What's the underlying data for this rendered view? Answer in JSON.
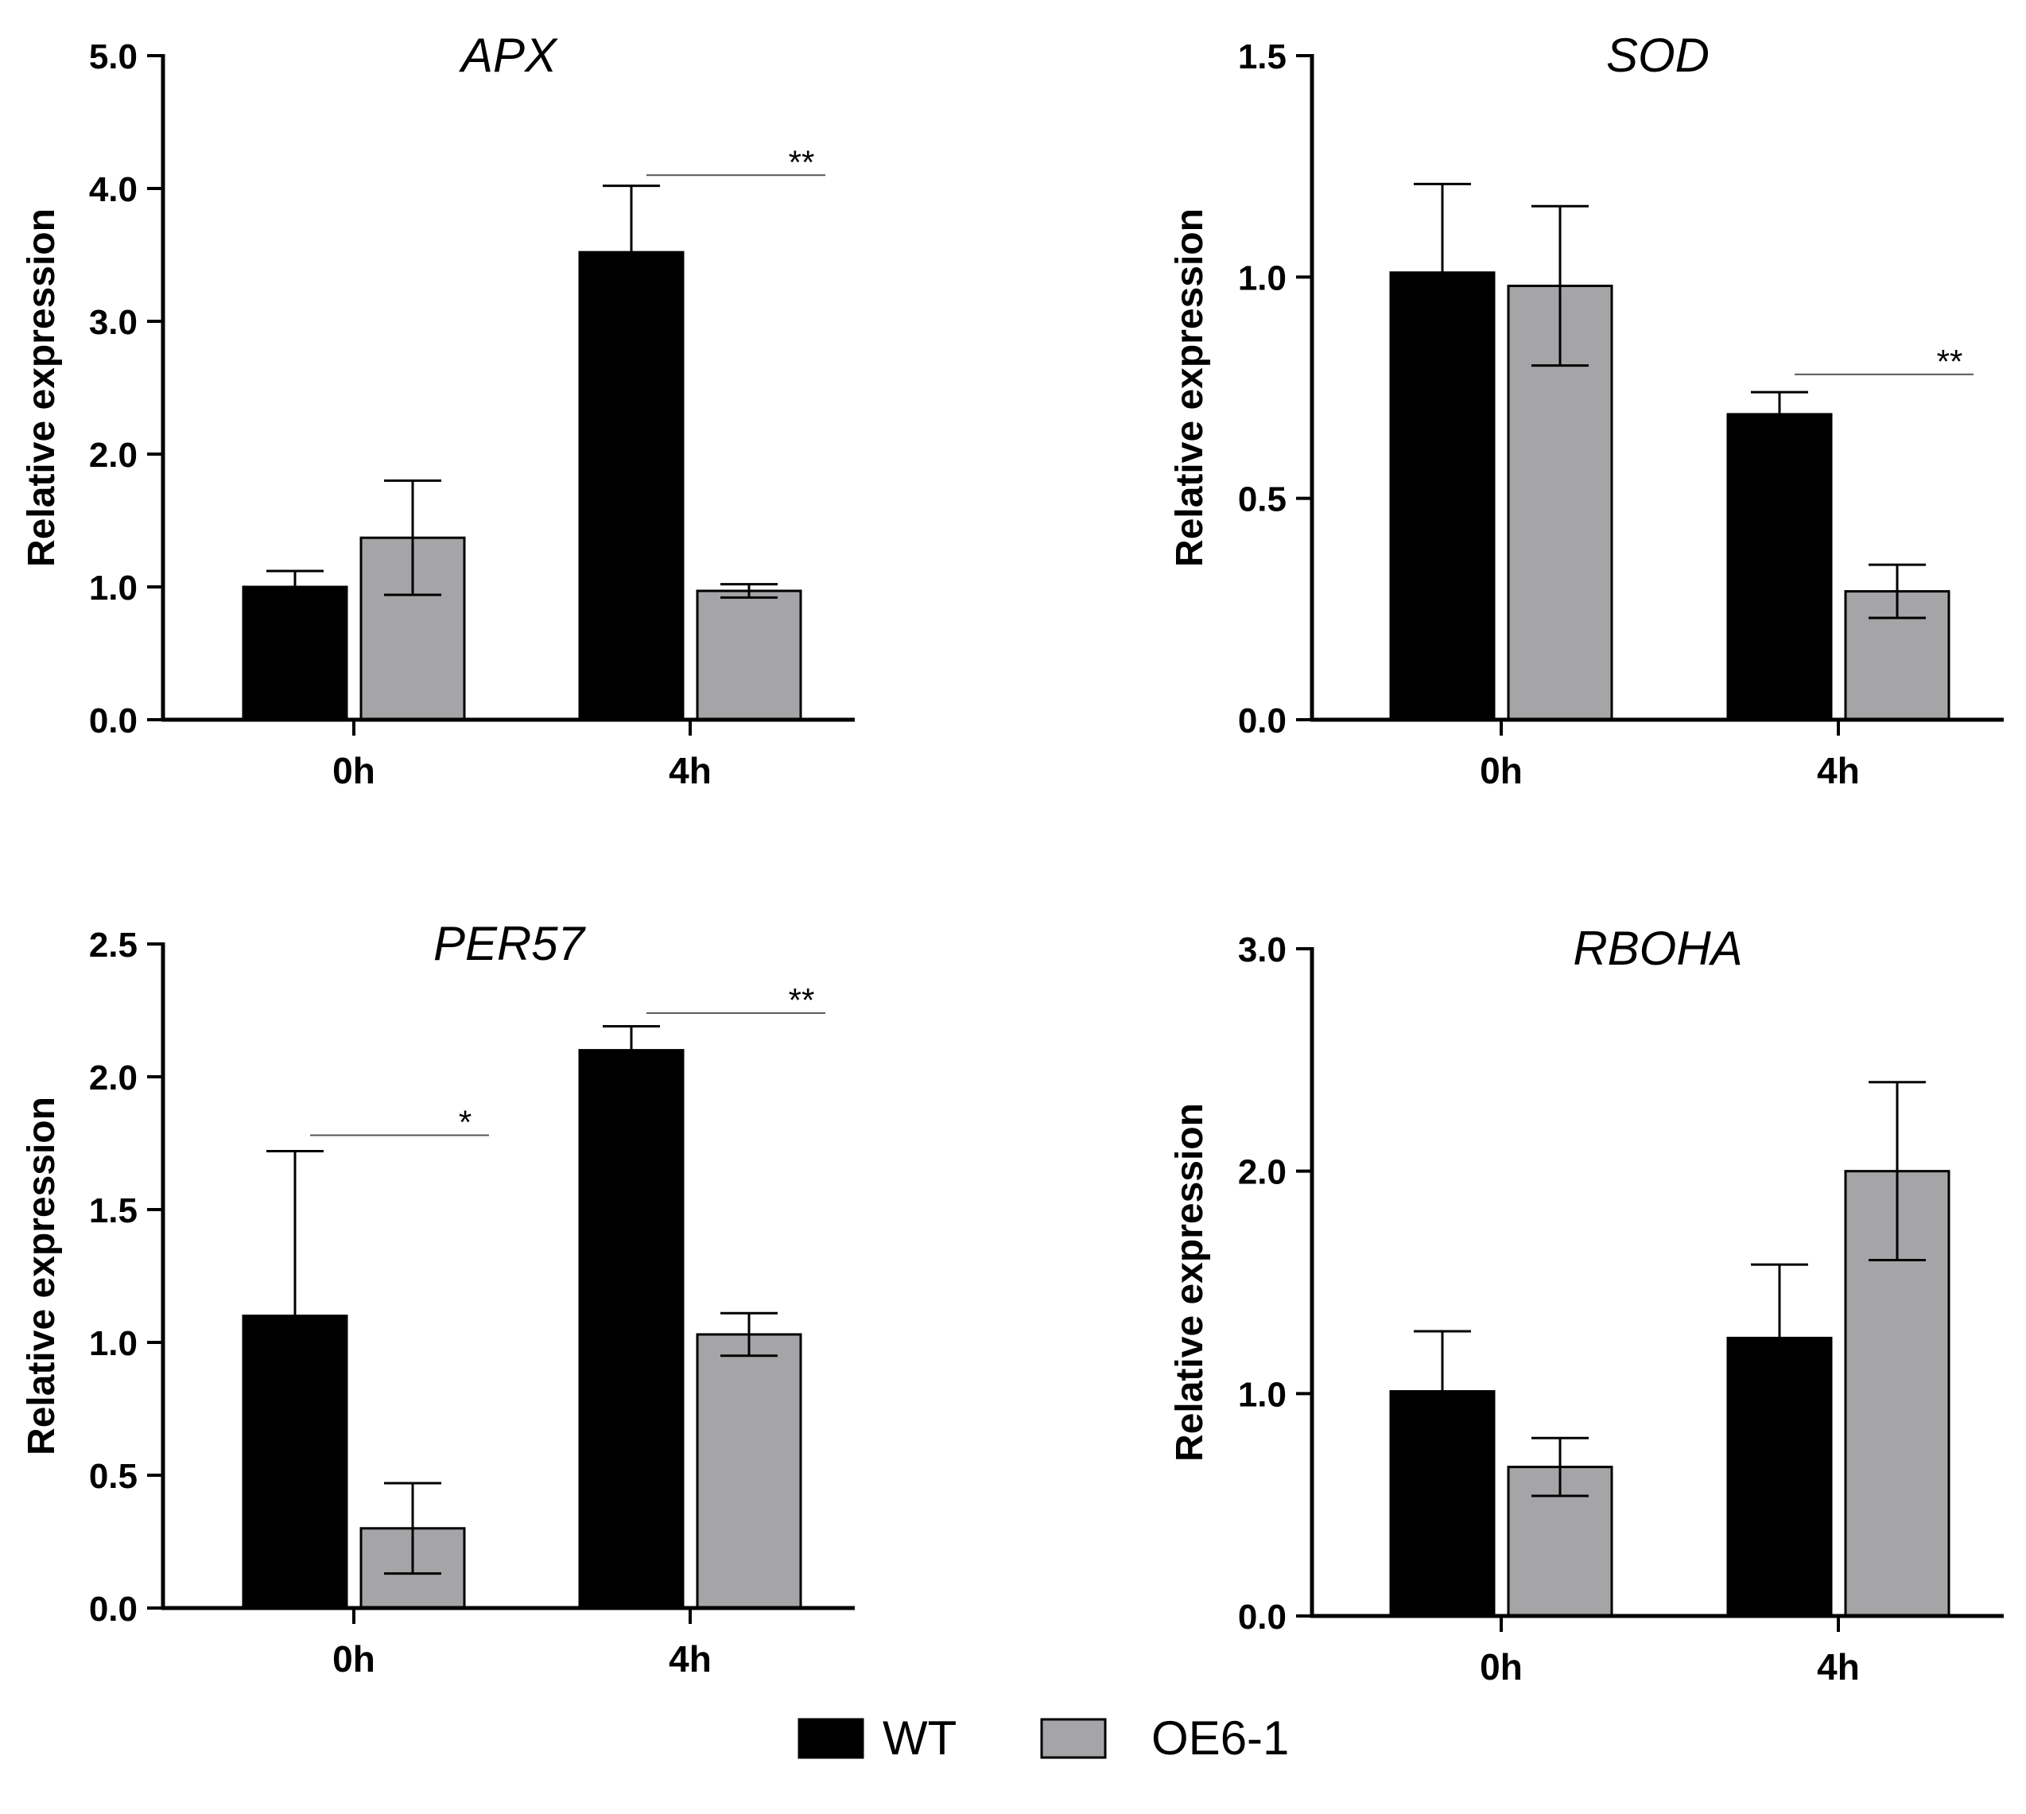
{
  "colors": {
    "wt": "#000000",
    "oe": "#a5a5a8",
    "axis": "#000000",
    "sig_line": "#555555"
  },
  "legend": {
    "items": [
      {
        "label": "WT",
        "color": "#000000"
      },
      {
        "label": "OE6-1",
        "color": "#a5a5a8"
      }
    ]
  },
  "chart_data": [
    {
      "type": "bar",
      "title": "APX",
      "ylabel": "Relative expression",
      "xlabel": "",
      "categories": [
        "0h",
        "4h"
      ],
      "ylim": [
        0,
        5
      ],
      "yticks": [
        0,
        1,
        2,
        3,
        4,
        5
      ],
      "ytick_labels": [
        "0.0",
        "1.0",
        "2.0",
        "3.0",
        "4.0",
        "5.0"
      ],
      "series": [
        {
          "name": "WT",
          "values": [
            1.0,
            3.52
          ],
          "errors": [
            0.12,
            0.5
          ]
        },
        {
          "name": "OE6-1",
          "values": [
            1.37,
            0.97
          ],
          "errors": [
            0.43,
            0.05
          ]
        }
      ],
      "significance": [
        {
          "category": 1,
          "label": "**",
          "y": 4.1
        }
      ]
    },
    {
      "type": "bar",
      "title": "SOD",
      "ylabel": "Relative expression",
      "xlabel": "",
      "categories": [
        "0h",
        "4h"
      ],
      "ylim": [
        0,
        1.5
      ],
      "yticks": [
        0,
        0.5,
        1.0,
        1.5
      ],
      "ytick_labels": [
        "0.0",
        "0.5",
        "1.0",
        "1.5"
      ],
      "series": [
        {
          "name": "WT",
          "values": [
            1.01,
            0.69
          ],
          "errors": [
            0.2,
            0.05
          ]
        },
        {
          "name": "OE6-1",
          "values": [
            0.98,
            0.29
          ],
          "errors": [
            0.18,
            0.06
          ]
        }
      ],
      "significance": [
        {
          "category": 1,
          "label": "**",
          "y": 0.78
        }
      ]
    },
    {
      "type": "bar",
      "title": "PER57",
      "ylabel": "Relative expression",
      "xlabel": "",
      "categories": [
        "0h",
        "4h"
      ],
      "ylim": [
        0,
        2.5
      ],
      "yticks": [
        0,
        0.5,
        1.0,
        1.5,
        2.0,
        2.5
      ],
      "ytick_labels": [
        "0.0",
        "0.5",
        "1.0",
        "1.5",
        "2.0",
        "2.5"
      ],
      "series": [
        {
          "name": "WT",
          "values": [
            1.1,
            2.1
          ],
          "errors": [
            0.62,
            0.09
          ]
        },
        {
          "name": "OE6-1",
          "values": [
            0.3,
            1.03
          ],
          "errors": [
            0.17,
            0.08
          ]
        }
      ],
      "significance": [
        {
          "category": 0,
          "label": "*",
          "y": 1.78
        },
        {
          "category": 1,
          "label": "**",
          "y": 2.24
        }
      ]
    },
    {
      "type": "bar",
      "title": "RBOHA",
      "ylabel": "Relative expression",
      "xlabel": "",
      "categories": [
        "0h",
        "4h"
      ],
      "ylim": [
        0,
        3
      ],
      "yticks": [
        0,
        1,
        2,
        3
      ],
      "ytick_labels": [
        "0.0",
        "1.0",
        "2.0",
        "3.0"
      ],
      "series": [
        {
          "name": "WT",
          "values": [
            1.01,
            1.25
          ],
          "errors": [
            0.27,
            0.33
          ]
        },
        {
          "name": "OE6-1",
          "values": [
            0.67,
            2.0
          ],
          "errors": [
            0.13,
            0.4
          ]
        }
      ],
      "significance": []
    }
  ]
}
